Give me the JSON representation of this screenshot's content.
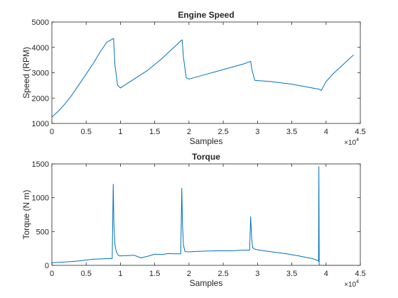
{
  "chart_data": [
    {
      "type": "line",
      "title": "Engine Speed",
      "xlabel": "Samples",
      "ylabel": "Speed (RPM)",
      "xlim": [
        0,
        45000
      ],
      "ylim": [
        1000,
        5000
      ],
      "x_exponent_label": "×10",
      "x_exponent_power": "4",
      "xticks": [
        0,
        5000,
        10000,
        15000,
        20000,
        25000,
        30000,
        35000,
        40000,
        45000
      ],
      "xtick_labels": [
        "0",
        "0.5",
        "1",
        "1.5",
        "2",
        "2.5",
        "3",
        "3.5",
        "4",
        "4.5"
      ],
      "yticks": [
        1000,
        2000,
        3000,
        4000,
        5000
      ],
      "ytick_labels": [
        "1000",
        "2000",
        "3000",
        "4000",
        "5000"
      ],
      "grid": false,
      "color": "#0072BD",
      "series": [
        {
          "x": [
            0,
            1000,
            2000,
            3000,
            4000,
            5000,
            6000,
            7000,
            8000,
            9000,
            9200,
            9600,
            10000,
            12000,
            14000,
            16000,
            18000,
            19000,
            19200,
            19600,
            20000,
            22000,
            24000,
            26000,
            28000,
            29000,
            29200,
            29600,
            32000,
            35000,
            38000,
            39000,
            39300,
            40000,
            41000,
            42000,
            43000,
            44000
          ],
          "y": [
            1250,
            1500,
            1800,
            2150,
            2550,
            2950,
            3350,
            3800,
            4200,
            4350,
            3300,
            2500,
            2400,
            2750,
            3100,
            3550,
            4050,
            4300,
            3600,
            2800,
            2750,
            2900,
            3050,
            3200,
            3350,
            3450,
            3100,
            2700,
            2650,
            2550,
            2400,
            2350,
            2300,
            2650,
            2950,
            3200,
            3450,
            3700
          ]
        }
      ]
    },
    {
      "type": "line",
      "title": "Torque",
      "xlabel": "Samples",
      "ylabel": "Torque (N m)",
      "xlim": [
        0,
        45000
      ],
      "ylim": [
        0,
        1500
      ],
      "x_exponent_label": "×10",
      "x_exponent_power": "4",
      "xticks": [
        0,
        5000,
        10000,
        15000,
        20000,
        25000,
        30000,
        35000,
        40000,
        45000
      ],
      "xtick_labels": [
        "0",
        "0.5",
        "1",
        "1.5",
        "2",
        "2.5",
        "3",
        "3.5",
        "4",
        "4.5"
      ],
      "yticks": [
        0,
        500,
        1000,
        1500
      ],
      "ytick_labels": [
        "0",
        "500",
        "1000",
        "1500"
      ],
      "grid": false,
      "color": "#0072BD",
      "series": [
        {
          "x": [
            0,
            2000,
            4000,
            5000,
            6000,
            7000,
            8000,
            8800,
            8950,
            9050,
            9200,
            9400,
            9700,
            10000,
            12000,
            13000,
            14000,
            15000,
            16000,
            17000,
            18000,
            18800,
            18950,
            19050,
            19200,
            19400,
            19700,
            20000,
            22000,
            24000,
            26000,
            28000,
            28850,
            29000,
            29150,
            29300,
            29600,
            30000,
            32000,
            34000,
            36000,
            38000,
            38800,
            38900,
            38950,
            39000,
            39200,
            40000,
            41000,
            42000,
            43000,
            44000
          ],
          "y": [
            40,
            50,
            65,
            80,
            90,
            95,
            100,
            100,
            1200,
            600,
            300,
            200,
            145,
            140,
            150,
            110,
            135,
            165,
            160,
            175,
            170,
            170,
            1140,
            600,
            300,
            210,
            200,
            200,
            210,
            215,
            215,
            225,
            225,
            720,
            400,
            260,
            240,
            230,
            200,
            175,
            140,
            100,
            70,
            60,
            1460,
            0,
            0,
            0,
            0,
            0,
            0,
            0
          ]
        }
      ]
    }
  ]
}
